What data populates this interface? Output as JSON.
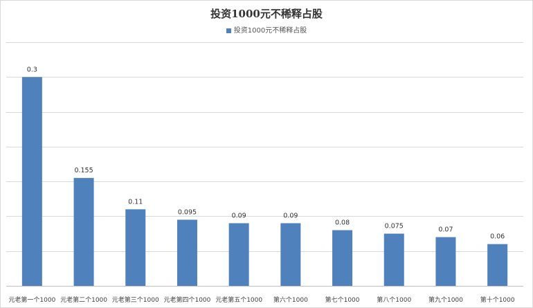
{
  "colors": {
    "bar": "#4f81bd",
    "grid": "#d9d9d9",
    "axis": "#bfbfbf",
    "text": "#333333"
  },
  "chart_data": {
    "type": "bar",
    "title": "投资1000元不稀释占股",
    "legend": [
      "投资1000元不稀释占股"
    ],
    "legend_position": "top",
    "grid": true,
    "ylim": [
      0,
      0.35
    ],
    "categories": [
      "元老第一个1000",
      "元老第二个1000",
      "元老第三个1000",
      "元老第四个1000",
      "元老第五个1000",
      "第六个1000",
      "第七个1000",
      "第八个1000",
      "第九个1000",
      "第十个1000"
    ],
    "series": [
      {
        "name": "投资1000元不稀释占股",
        "values": [
          0.3,
          0.155,
          0.11,
          0.095,
          0.09,
          0.09,
          0.08,
          0.075,
          0.07,
          0.06
        ]
      }
    ],
    "data_labels": [
      "0.3",
      "0.155",
      "0.11",
      "0.095",
      "0.09",
      "0.09",
      "0.08",
      "0.075",
      "0.07",
      "0.06"
    ]
  }
}
